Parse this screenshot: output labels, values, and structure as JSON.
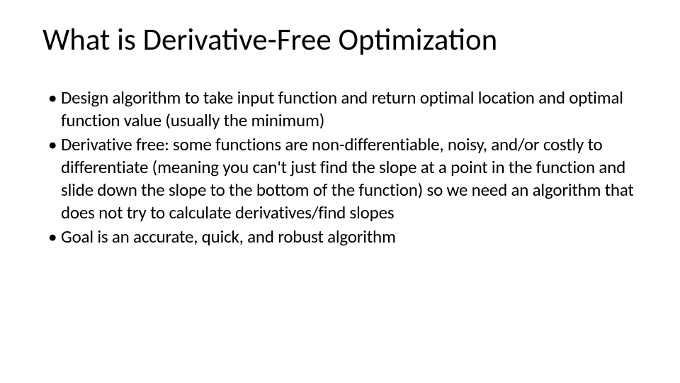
{
  "slide": {
    "title": "What is Derivative-Free Optimization",
    "title_fontsize": 43,
    "title_fontweight": 400,
    "title_color": "#000000",
    "background_color": "#ffffff",
    "bullets": [
      "Design algorithm to take input function and return optimal location and optimal function value (usually the minimum)",
      "Derivative free: some functions are non-differentiable, noisy, and/or costly to differentiate (meaning you can't just find the slope at a point in the function and slide down the slope to the bottom of the function) so we need an algorithm that does not try to calculate derivatives/find slopes",
      "Goal is an accurate, quick, and robust algorithm"
    ],
    "bullet_fontsize": 25,
    "bullet_color": "#000000",
    "font_family": "Calibri"
  }
}
